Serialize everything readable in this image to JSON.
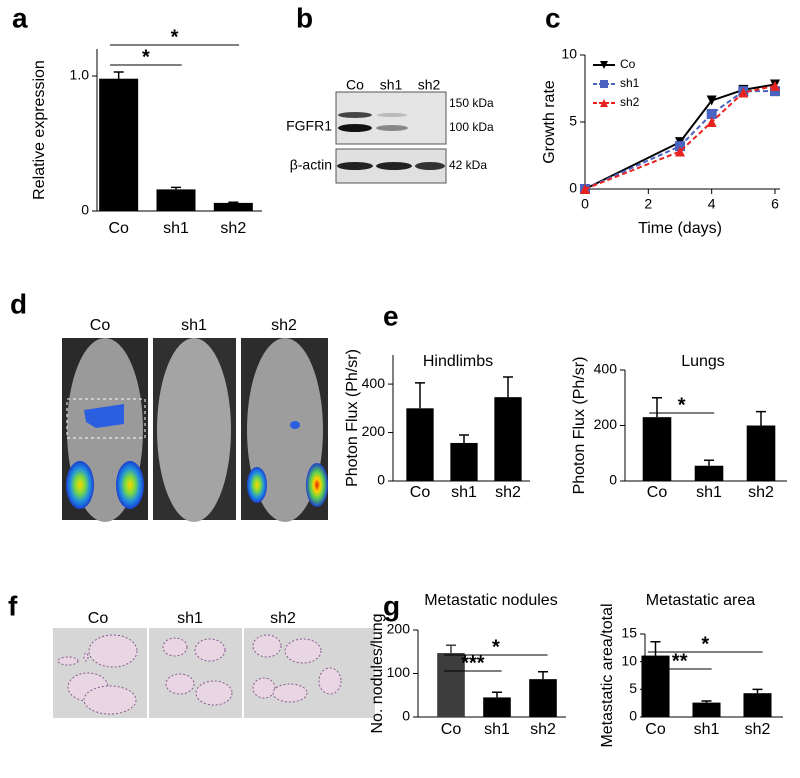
{
  "figure": {
    "panels": [
      "a",
      "b",
      "c",
      "d",
      "e",
      "f",
      "g"
    ],
    "blot": {
      "lanes": [
        "Co",
        "sh1",
        "sh2"
      ],
      "rows": [
        "FGFR1",
        "β-actin"
      ],
      "markers": [
        "150 kDa",
        "100 kDa",
        "42 kDa"
      ]
    },
    "imaging": {
      "labels": [
        "Co",
        "sh1",
        "sh2"
      ]
    },
    "histology": {
      "labels": [
        "Co",
        "sh1",
        "sh2"
      ]
    }
  },
  "chart_data": [
    {
      "type": "bar",
      "ylabel": "Relative expression",
      "categories": [
        "Co",
        "sh1",
        "sh2"
      ],
      "values": [
        0.98,
        0.16,
        0.06
      ],
      "errors": [
        0.05,
        0.015,
        0.005
      ],
      "color": "#000000",
      "ylim": [
        0,
        1.2
      ],
      "yticks": [
        0,
        {
          "value": 1,
          "label": "1.0"
        }
      ],
      "annotations": [
        "*",
        "*"
      ]
    },
    {
      "type": "line",
      "ylabel": "Growth rate",
      "xlabel": "Time (days)",
      "x": [
        0,
        3,
        4,
        5,
        6
      ],
      "series": [
        {
          "name": "Co",
          "color": "#000000",
          "marker": "v",
          "linestyle": "solid",
          "values": [
            0,
            3.5,
            6.6,
            7.4,
            7.8
          ]
        },
        {
          "name": "sh1",
          "color": "#4a62c0",
          "marker": "s",
          "linestyle": "dashed",
          "values": [
            0,
            3.2,
            5.6,
            7.3,
            7.3
          ]
        },
        {
          "name": "sh2",
          "color": "#e8231f",
          "marker": "^",
          "linestyle": "dashed",
          "values": [
            0,
            2.8,
            5.0,
            7.2,
            7.7
          ]
        }
      ],
      "xlim": [
        0,
        6
      ],
      "ylim": [
        0,
        10
      ],
      "xticks": [
        0,
        2,
        4,
        6
      ],
      "yticks": [
        0,
        5,
        10
      ],
      "legend": "upper left"
    },
    {
      "type": "bar",
      "title": "Hindlimbs",
      "ylabel": "Photon Flux (Ph/sr)",
      "categories": [
        "Co",
        "sh1",
        "sh2"
      ],
      "values": [
        300,
        157,
        346
      ],
      "errors": [
        105,
        33,
        83
      ],
      "color": "#000000",
      "ylim": [
        0,
        520
      ],
      "yticks": [
        0,
        200,
        400
      ],
      "annotations": []
    },
    {
      "type": "bar",
      "title": "Lungs",
      "ylabel": "Photon Flux (Ph/sr)",
      "categories": [
        "Co",
        "sh1",
        "sh2"
      ],
      "values": [
        230,
        55,
        200
      ],
      "errors": [
        70,
        20,
        50
      ],
      "color": "#000000",
      "ylim": [
        0,
        400
      ],
      "yticks": [
        0,
        200,
        400
      ],
      "annotations": [
        "*"
      ]
    },
    {
      "type": "bar",
      "title": "Metastatic nodules",
      "ylabel": "No. nodules/lung",
      "categories": [
        "Co",
        "sh1",
        "sh2"
      ],
      "values": [
        147,
        45,
        87
      ],
      "errors": [
        18,
        12,
        17
      ],
      "colors": [
        "#3d3d3d",
        "#000000",
        "#000000"
      ],
      "ylim": [
        0,
        200
      ],
      "yticks": [
        0,
        100,
        200
      ],
      "annotations": [
        "***",
        "*"
      ]
    },
    {
      "type": "bar",
      "title": "Metastatic area",
      "ylabel": "Metastatic area/total",
      "categories": [
        "Co",
        "sh1",
        "sh2"
      ],
      "values": [
        11.1,
        2.6,
        4.3
      ],
      "errors": [
        2.5,
        0.3,
        0.7
      ],
      "color": "#000000",
      "ylim": [
        0,
        15
      ],
      "yticks": [
        0,
        5,
        10,
        15
      ],
      "annotations": [
        "**",
        "*"
      ]
    }
  ]
}
